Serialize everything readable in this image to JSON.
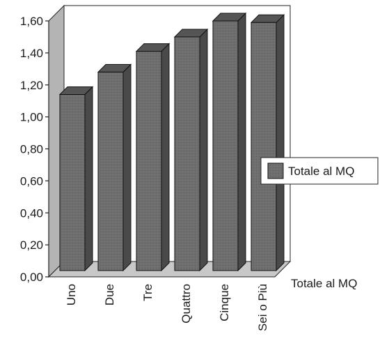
{
  "chart_data": {
    "type": "bar",
    "categories": [
      "Uno",
      "Due",
      "Tre",
      "Quattro",
      "Cinque",
      "Sei o Più"
    ],
    "series": [
      {
        "name": "Totale al MQ",
        "values": [
          1.14,
          1.28,
          1.41,
          1.5,
          1.6,
          1.59
        ]
      }
    ],
    "ylim": [
      0,
      1.6
    ],
    "yticks": [
      "0,00",
      "0,20",
      "0,40",
      "0,60",
      "0,80",
      "1,00",
      "1,20",
      "1,40",
      "1,60"
    ],
    "depth_axis_label": "Totale al MQ",
    "legend": {
      "label": "Totale al MQ",
      "position": "right"
    },
    "grid": false,
    "style": "3d",
    "colors": {
      "bar_front": "#6e6e6e",
      "bar_top": "#555555",
      "bar_side": "#4a4a4a",
      "wall": "#b4b4b4",
      "floor": "#c8c8c8"
    }
  }
}
